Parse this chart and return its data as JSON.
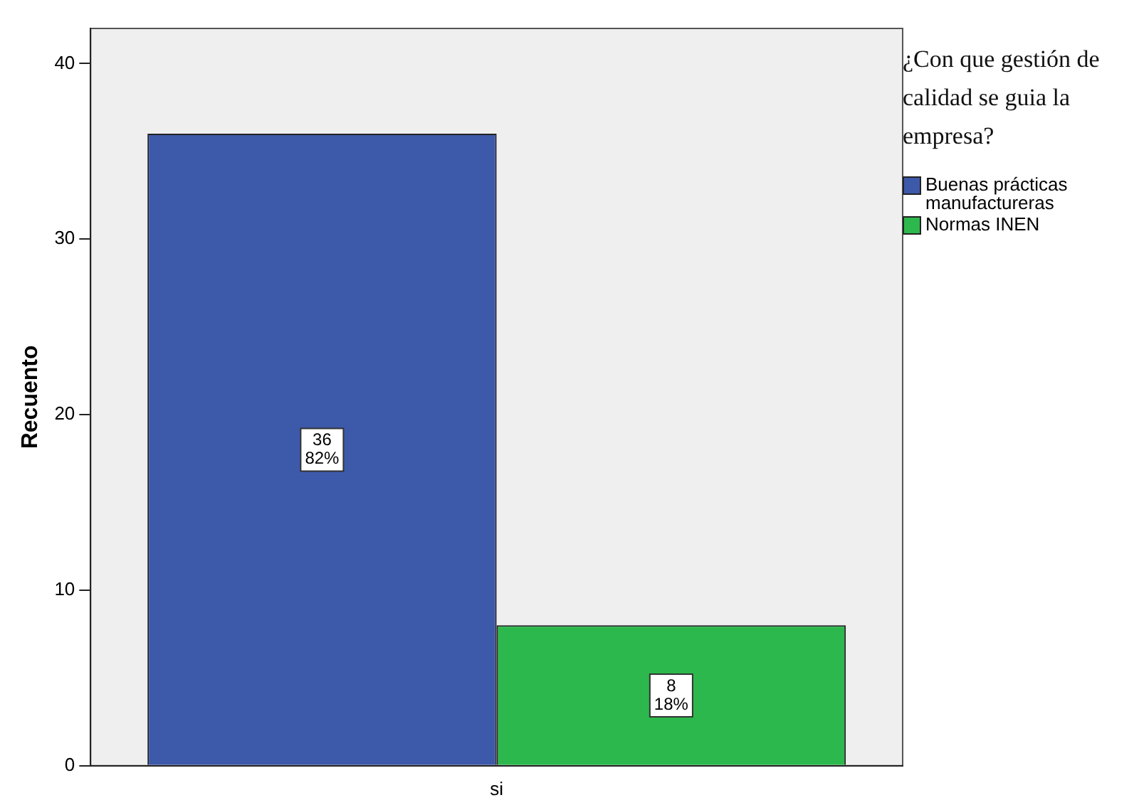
{
  "chart_data": {
    "type": "bar",
    "ylabel": "Recuento",
    "legend_title": "¿Con que gestión de calidad se guia la empresa?",
    "categories": [
      "si"
    ],
    "series": [
      {
        "name": "Buenas prácticas manufactureras",
        "color": "#3d59aa",
        "values": [
          36
        ],
        "value_labels": [
          "36\n82%"
        ]
      },
      {
        "name": "Normas INEN",
        "color": "#2db84d",
        "values": [
          8
        ],
        "value_labels": [
          "8\n18%"
        ]
      }
    ],
    "ylim": [
      0,
      42
    ],
    "yticks": [
      0,
      10,
      20,
      30,
      40
    ],
    "grid": false,
    "legend": "top right"
  }
}
